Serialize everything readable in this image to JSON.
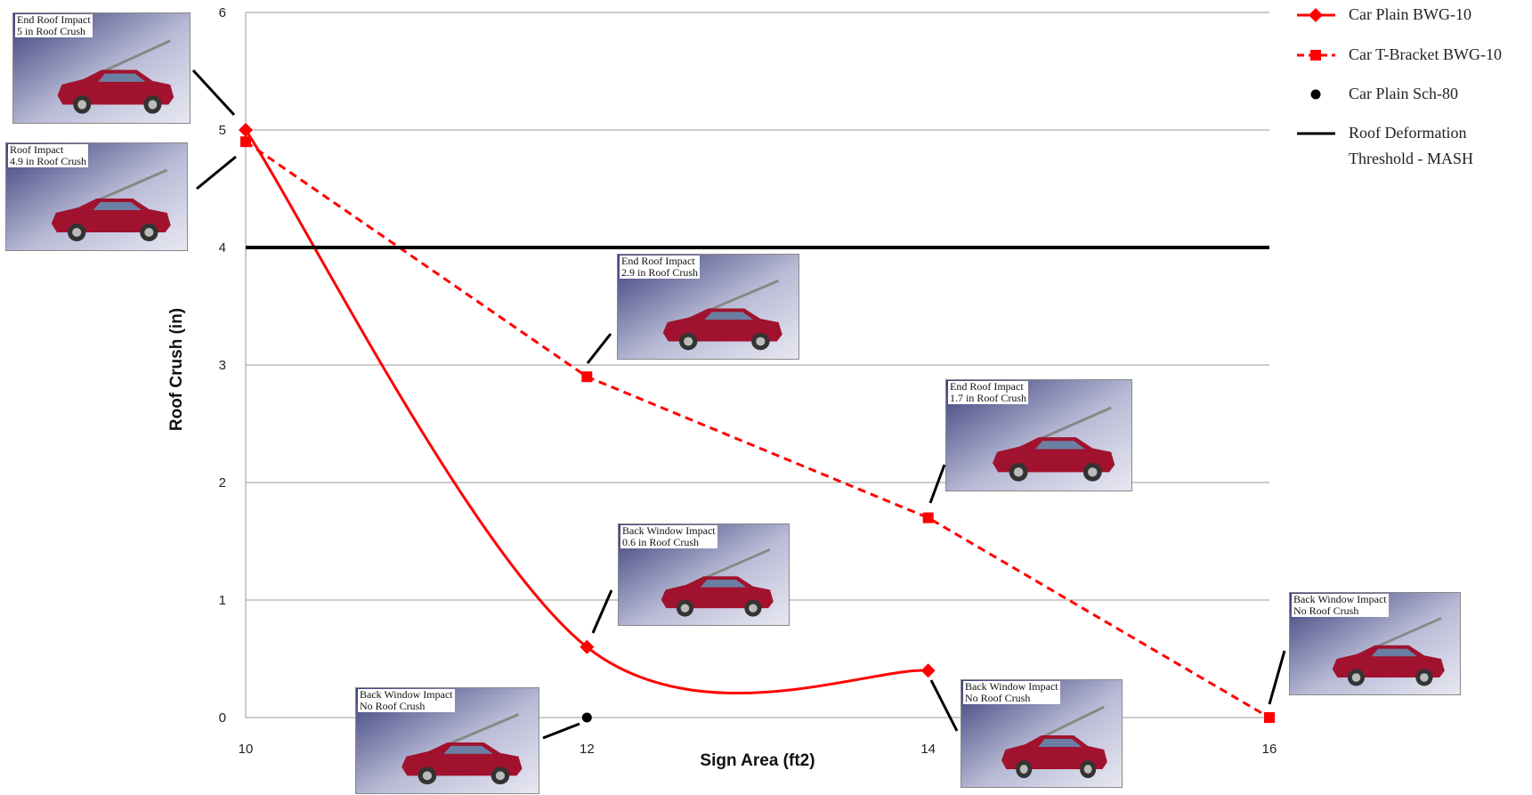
{
  "chart_data": {
    "type": "line",
    "x_label": "Sign Area (ft2)",
    "y_label": "Roof Crush (in)",
    "xlim": [
      10,
      16
    ],
    "xticks": [
      10,
      12,
      14,
      16
    ],
    "ylim": [
      0,
      6
    ],
    "yticks": [
      0,
      1,
      2,
      3,
      4,
      5,
      6
    ],
    "grid": true,
    "legend": "right",
    "series": [
      {
        "name": "Car Plain BWG-10",
        "color": "#ff0000",
        "marker": "diamond",
        "dash": false,
        "smooth": true,
        "x": [
          10,
          12,
          14
        ],
        "values": [
          5,
          0.6,
          0.4
        ]
      },
      {
        "name": "Car T-Bracket BWG-10",
        "color": "#ff0000",
        "marker": "square",
        "dash": true,
        "smooth": false,
        "x": [
          10,
          12,
          14,
          16
        ],
        "values": [
          4.9,
          2.9,
          1.7,
          0
        ]
      },
      {
        "name": "Car Plain Sch-80",
        "color": "#000000",
        "marker": "circle",
        "dash": false,
        "smooth": false,
        "line": false,
        "x": [
          12
        ],
        "values": [
          0
        ]
      },
      {
        "name": "Roof Deformation Threshold - MASH",
        "color": "#000000",
        "marker": "none",
        "dash": false,
        "smooth": false,
        "x": [
          10,
          16
        ],
        "values": [
          4,
          4
        ]
      }
    ],
    "annotations": [
      {
        "lines": [
          "End Roof Impact",
          "5 in Roof Crush"
        ]
      },
      {
        "lines": [
          "Roof Impact",
          "4.9 in Roof Crush"
        ]
      },
      {
        "lines": [
          "End Roof Impact",
          "2.9 in Roof Crush"
        ]
      },
      {
        "lines": [
          "End Roof Impact",
          "1.7 in Roof Crush"
        ]
      },
      {
        "lines": [
          "Back Window Impact",
          "0.6 in Roof Crush"
        ]
      },
      {
        "lines": [
          "Back Window Impact",
          "No Roof Crush"
        ]
      },
      {
        "lines": [
          "Back Window Impact",
          "No Roof Crush"
        ]
      },
      {
        "lines": [
          "Back Window Impact",
          "No Roof Crush"
        ]
      }
    ]
  }
}
